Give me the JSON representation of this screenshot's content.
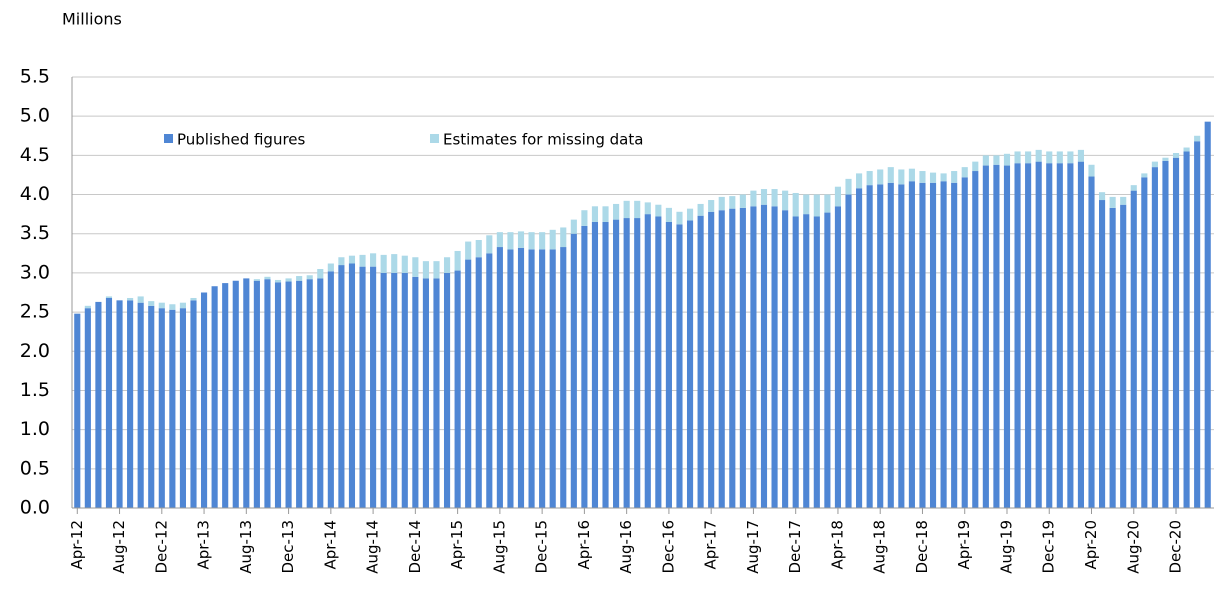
{
  "chart_data": {
    "type": "stacked_bar",
    "y_axis_label": "Millions",
    "categories": [
      "Apr-12",
      null,
      null,
      null,
      "Aug-12",
      null,
      null,
      null,
      "Dec-12",
      null,
      null,
      null,
      "Apr-13",
      null,
      null,
      null,
      "Aug-13",
      null,
      null,
      null,
      "Dec-13",
      null,
      null,
      null,
      "Apr-14",
      null,
      null,
      null,
      "Aug-14",
      null,
      null,
      null,
      "Dec-14",
      null,
      null,
      null,
      "Apr-15",
      null,
      null,
      null,
      "Aug-15",
      null,
      null,
      null,
      "Dec-15",
      null,
      null,
      null,
      "Apr-16",
      null,
      null,
      null,
      "Aug-16",
      null,
      null,
      null,
      "Dec-16",
      null,
      null,
      null,
      "Apr-17",
      null,
      null,
      null,
      "Aug-17",
      null,
      null,
      null,
      "Dec-17",
      null,
      null,
      null,
      "Apr-18",
      null,
      null,
      null,
      "Aug-18",
      null,
      null,
      null,
      "Dec-18",
      null,
      null,
      null,
      "Apr-19",
      null,
      null,
      null,
      "Aug-19",
      null,
      null,
      null,
      "Dec-19",
      null,
      null,
      null,
      "Apr-20",
      null,
      null,
      null,
      "Aug-20",
      null,
      null,
      null,
      "Dec-20",
      null,
      null,
      null
    ],
    "series": [
      {
        "name": "Published figures",
        "color": "#4f86d4",
        "values": [
          2.48,
          2.55,
          2.63,
          2.68,
          2.65,
          2.65,
          2.62,
          2.58,
          2.55,
          2.53,
          2.55,
          2.65,
          2.75,
          2.83,
          2.87,
          2.9,
          2.93,
          2.9,
          2.92,
          2.88,
          2.89,
          2.9,
          2.92,
          2.93,
          3.02,
          3.1,
          3.12,
          3.08,
          3.08,
          3.0,
          3.0,
          3.0,
          2.95,
          2.93,
          2.93,
          3.0,
          3.03,
          3.17,
          3.2,
          3.25,
          3.33,
          3.3,
          3.32,
          3.3,
          3.3,
          3.3,
          3.33,
          3.5,
          3.6,
          3.65,
          3.65,
          3.68,
          3.7,
          3.7,
          3.75,
          3.72,
          3.65,
          3.62,
          3.67,
          3.73,
          3.78,
          3.8,
          3.82,
          3.83,
          3.85,
          3.87,
          3.85,
          3.8,
          3.72,
          3.75,
          3.72,
          3.77,
          3.85,
          4.0,
          4.08,
          4.12,
          4.13,
          4.15,
          4.13,
          4.17,
          4.15,
          4.15,
          4.17,
          4.15,
          4.22,
          4.3,
          4.37,
          4.38,
          4.37,
          4.4,
          4.4,
          4.42,
          4.4,
          4.4,
          4.4,
          4.42,
          4.23,
          3.93,
          3.83,
          3.87,
          4.05,
          4.22,
          4.35,
          4.43,
          4.47,
          4.55,
          4.68,
          4.93
        ]
      },
      {
        "name": "Estimates for missing data",
        "color": "#acd9e8",
        "values": [
          0,
          0.03,
          0,
          0.02,
          0,
          0.03,
          0.08,
          0.06,
          0.07,
          0.07,
          0.07,
          0.03,
          0,
          0,
          0,
          0,
          0,
          0.02,
          0.03,
          0.03,
          0.04,
          0.06,
          0.05,
          0.12,
          0.1,
          0.1,
          0.1,
          0.15,
          0.17,
          0.23,
          0.24,
          0.22,
          0.25,
          0.22,
          0.22,
          0.2,
          0.25,
          0.23,
          0.22,
          0.23,
          0.19,
          0.22,
          0.21,
          0.22,
          0.22,
          0.25,
          0.25,
          0.18,
          0.2,
          0.2,
          0.2,
          0.2,
          0.22,
          0.22,
          0.15,
          0.15,
          0.18,
          0.16,
          0.15,
          0.15,
          0.15,
          0.17,
          0.16,
          0.17,
          0.2,
          0.2,
          0.22,
          0.25,
          0.3,
          0.25,
          0.28,
          0.23,
          0.25,
          0.2,
          0.19,
          0.18,
          0.19,
          0.2,
          0.19,
          0.16,
          0.15,
          0.13,
          0.1,
          0.15,
          0.13,
          0.12,
          0.13,
          0.12,
          0.15,
          0.15,
          0.15,
          0.15,
          0.15,
          0.15,
          0.15,
          0.15,
          0.15,
          0.1,
          0.14,
          0.1,
          0.07,
          0.05,
          0.07,
          0.04,
          0.06,
          0.05,
          0.07,
          0
        ]
      }
    ],
    "ylim": [
      0,
      5.5
    ],
    "yticks": [
      {
        "value": 0,
        "label": "0.0"
      },
      0.5,
      {
        "value": 1,
        "label": "1.0"
      },
      1.5,
      {
        "value": 2,
        "label": "2.0"
      },
      2.5,
      {
        "value": 3,
        "label": "3.0"
      },
      3.5,
      {
        "value": 4,
        "label": "4.0"
      },
      4.5,
      {
        "value": 5,
        "label": "5.0"
      },
      5.5
    ],
    "grid": true
  }
}
